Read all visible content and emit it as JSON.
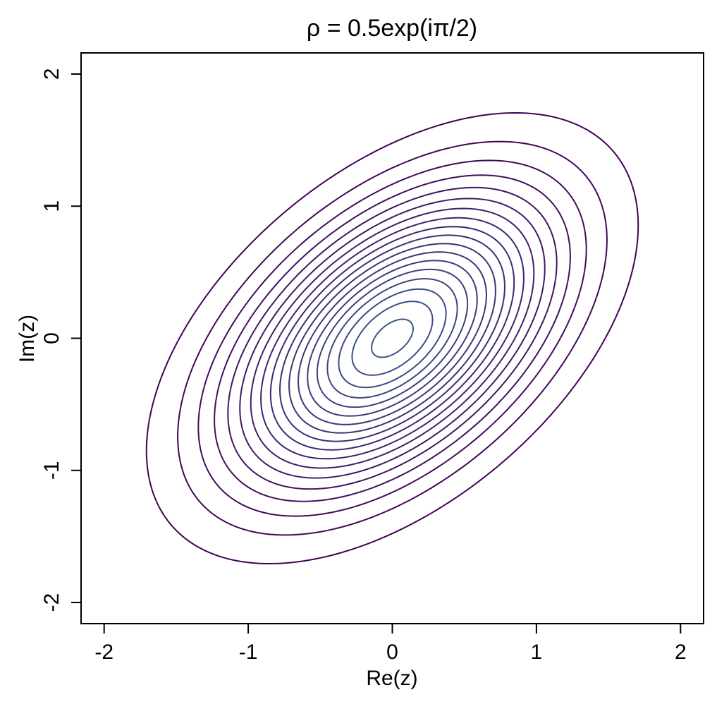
{
  "chart_data": {
    "type": "contour",
    "title": "ρ = 0.5exp(iπ/2)",
    "xlabel": "Re(z)",
    "ylabel": "Im(z)",
    "xlim": [
      -2.16,
      2.16
    ],
    "ylim": [
      -2.16,
      2.16
    ],
    "xticks": [
      -2,
      -1,
      0,
      1,
      2
    ],
    "yticks": [
      -2,
      -1,
      0,
      1,
      2
    ],
    "covariance": [
      [
        0.5,
        0.25
      ],
      [
        0.25,
        0.5
      ]
    ],
    "levels": [
      0.02,
      0.04,
      0.06,
      0.08,
      0.1,
      0.12,
      0.14,
      0.16,
      0.18,
      0.2,
      0.22,
      0.24,
      0.26,
      0.28,
      0.3,
      0.32,
      0.34,
      0.36
    ],
    "color_low": "#440154",
    "color_high": "#3b528b"
  }
}
